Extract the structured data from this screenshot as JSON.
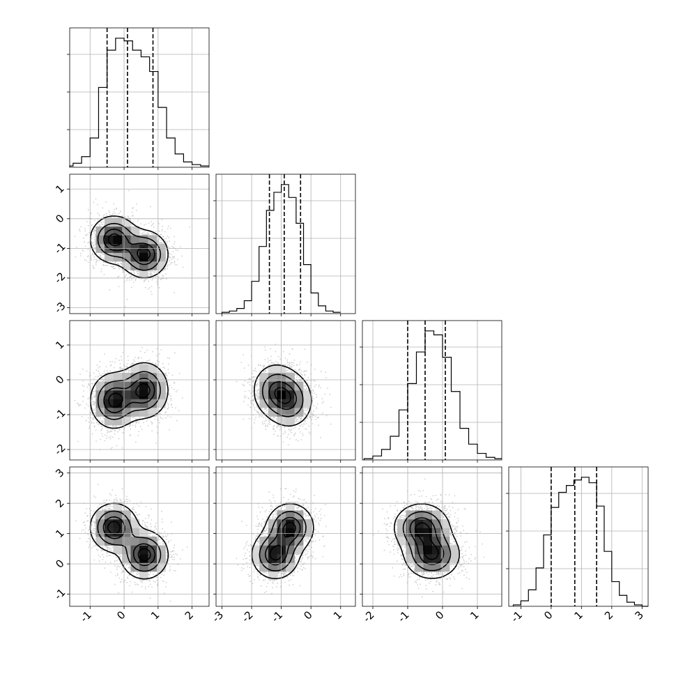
{
  "chart_data": {
    "type": "corner",
    "parameters": [
      {
        "range": [
          -1.6,
          2.5
        ],
        "ticks": [
          -1,
          0,
          1,
          2
        ],
        "quantiles": [
          -0.5,
          0.1,
          0.85
        ],
        "hist_x": [
          -1.75,
          -1.5,
          -1.25,
          -1.0,
          -0.75,
          -0.5,
          -0.25,
          0.0,
          0.25,
          0.5,
          0.75,
          1.0,
          1.25,
          1.5,
          1.75,
          2.0,
          2.25
        ],
        "hist_y": [
          1,
          3,
          8,
          22,
          60,
          88,
          97,
          95,
          88,
          83,
          72,
          45,
          22,
          10,
          4,
          2,
          1
        ]
      },
      {
        "range": [
          -3.2,
          1.5
        ],
        "ticks": [
          -3,
          -2,
          -1,
          0,
          1
        ],
        "quantiles": [
          -1.4,
          -0.9,
          -0.35
        ],
        "hist_x": [
          -3.0,
          -2.75,
          -2.5,
          -2.25,
          -2.0,
          -1.75,
          -1.5,
          -1.25,
          -1.0,
          -0.75,
          -0.5,
          -0.25,
          0.0,
          0.25,
          0.5,
          0.75
        ],
        "hist_y": [
          1,
          2,
          4,
          10,
          25,
          52,
          80,
          94,
          100,
          90,
          70,
          38,
          16,
          6,
          2,
          1
        ]
      },
      {
        "range": [
          -2.3,
          1.7
        ],
        "ticks": [
          -2,
          -1,
          0,
          1
        ],
        "quantiles": [
          -1.0,
          -0.5,
          0.08
        ],
        "hist_x": [
          -2.25,
          -2.0,
          -1.75,
          -1.5,
          -1.25,
          -1.0,
          -0.75,
          -0.5,
          -0.25,
          0.0,
          0.25,
          0.5,
          0.75,
          1.0,
          1.25,
          1.5
        ],
        "hist_y": [
          1,
          3,
          8,
          18,
          38,
          58,
          82,
          98,
          95,
          78,
          52,
          24,
          12,
          5,
          2,
          1
        ]
      },
      {
        "range": [
          -1.4,
          3.2
        ],
        "ticks": [
          -1,
          0,
          1,
          2,
          3
        ],
        "quantiles": [
          0.0,
          0.78,
          1.5
        ],
        "hist_x": [
          -1.25,
          -1.0,
          -0.75,
          -0.5,
          -0.25,
          0.0,
          0.25,
          0.5,
          0.75,
          1.0,
          1.25,
          1.5,
          1.75,
          2.0,
          2.25,
          2.5,
          2.75,
          3.0
        ],
        "hist_y": [
          1,
          4,
          12,
          28,
          52,
          72,
          83,
          88,
          92,
          94,
          90,
          73,
          40,
          18,
          8,
          3,
          1,
          0
        ]
      }
    ],
    "modes": [
      {
        "weight": 0.5,
        "mean": [
          -0.3,
          -0.7,
          -0.6,
          1.2
        ]
      },
      {
        "weight": 0.5,
        "mean": [
          0.6,
          -1.2,
          -0.3,
          0.3
        ]
      }
    ],
    "mode_sd": [
      0.35,
      0.4,
      0.4,
      0.4
    ],
    "samples_per_panel": 2500,
    "grid": true,
    "legend": "none"
  }
}
